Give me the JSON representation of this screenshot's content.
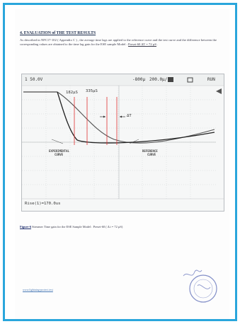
{
  "document": {
    "heading": "4. EVALUATION of THE TEST RESULTS",
    "paragraph_part1": "As described in NFC17-102 ( Appendix C ) , the average time lags are applied to the reference curve and the test curve and the difference between the corresponding values are obtained to the time lag gain for the ESE sample Model : ",
    "paragraph_underlined": "Preset-60 ΔT = 72 µS",
    "paragraph_part2": " .",
    "figure_caption_label": "Figure-6",
    "figure_caption_text": "  Streamer Time gain for the ESE Sample Model : Preset-60 ( Δ t = 72 µS)",
    "footer_link": "www.lightning-protect.test"
  },
  "oscilloscope": {
    "header_left": "1 50.0V",
    "header_mid1": "-800µ",
    "header_mid2": "200.0µ/",
    "status": "RUN",
    "marker_label_1": "182µS",
    "marker_label_2": "335µS",
    "delta_label": "ΔT",
    "annotation_experimental_1": "EXPERIMENTAL",
    "annotation_experimental_2": "CURVE",
    "annotation_reference_1": "REFERENCE",
    "annotation_reference_2": "CURVE",
    "readout": "Rise(1)=170.0us",
    "trace_color": "#222222",
    "reference_color": "#555555",
    "marker_color": "#e03030"
  },
  "colors": {
    "frame": "#2aa6dc",
    "stamp": "#5a6ab6"
  }
}
